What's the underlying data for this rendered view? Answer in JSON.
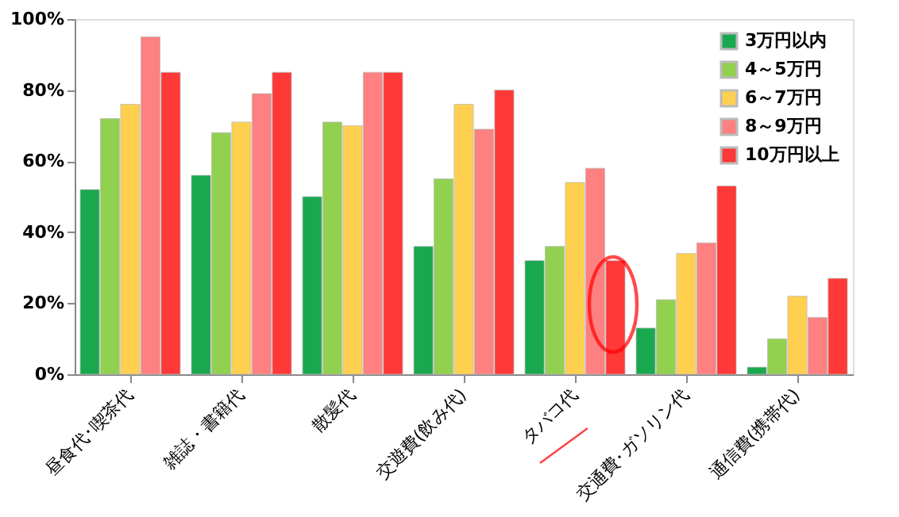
{
  "chart_data": {
    "type": "bar",
    "categories": [
      "昼食代･喫茶代",
      "雑誌・書籍代",
      "散髪代",
      "交遊費(飲み代)",
      "タバコ代",
      "交通費･ガソリン代",
      "通信費(携帯代)"
    ],
    "series": [
      {
        "name": "3万円以内",
        "color": "#1aa84f",
        "values": [
          52,
          56,
          50,
          36,
          32,
          13,
          2
        ]
      },
      {
        "name": "4～5万円",
        "color": "#92d050",
        "values": [
          72,
          68,
          71,
          55,
          36,
          21,
          10
        ]
      },
      {
        "name": "6～7万円",
        "color": "#ffd050",
        "values": [
          76,
          71,
          70,
          76,
          54,
          34,
          22
        ]
      },
      {
        "name": "8～9万円",
        "color": "#ff8080",
        "values": [
          95,
          79,
          85,
          69,
          58,
          37,
          16
        ]
      },
      {
        "name": "10万円以上",
        "color": "#ff3838",
        "values": [
          85,
          85,
          85,
          80,
          32,
          53,
          27
        ]
      }
    ],
    "ylim": [
      0,
      100
    ],
    "yticks": [
      {
        "value": 0,
        "label": "0%"
      },
      {
        "value": 20,
        "label": "20%"
      },
      {
        "value": 40,
        "label": "40%"
      },
      {
        "value": 60,
        "label": "60%"
      },
      {
        "value": 80,
        "label": "80%"
      },
      {
        "value": 100,
        "label": "100%"
      }
    ],
    "legend": "top right",
    "grid": false
  }
}
